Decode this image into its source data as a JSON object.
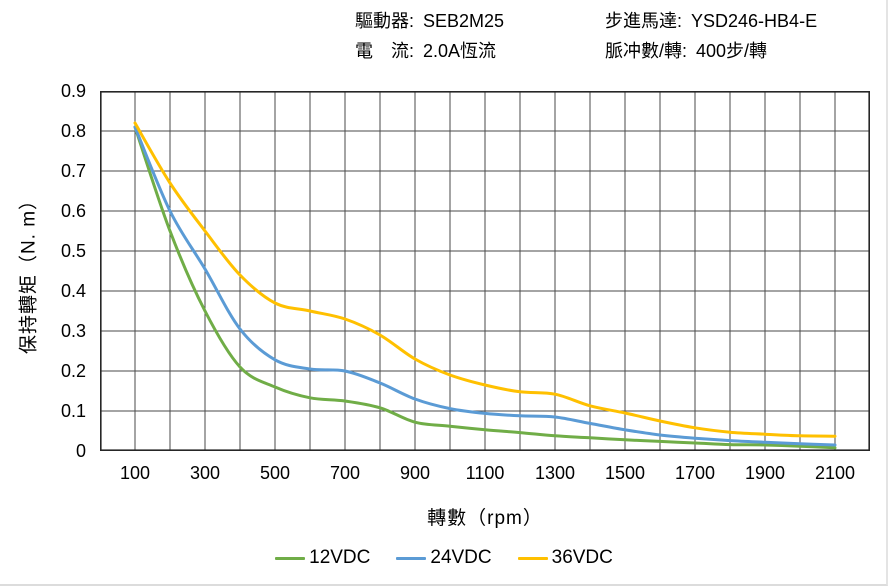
{
  "header": {
    "driver": {
      "label": "驅動器:",
      "value": "SEB2M25"
    },
    "current": {
      "label": "電　流:",
      "value": "2.0A恆流"
    },
    "motor": {
      "label": "步進馬達:",
      "value": "YSD246-HB4-E"
    },
    "pulses": {
      "label": "脈冲數/轉:",
      "value": "400步/轉"
    }
  },
  "chart_data": {
    "type": "line",
    "title": "",
    "xlabel": "轉數（rpm）",
    "ylabel": "保持轉矩（N. m）",
    "xlim": [
      0,
      2200
    ],
    "ylim": [
      0,
      0.9
    ],
    "grid": true,
    "grid_x_step": 100,
    "grid_y_step": 0.1,
    "x_ticks": [
      100,
      300,
      500,
      700,
      900,
      1100,
      1300,
      1500,
      1700,
      1900,
      2100
    ],
    "y_ticks": [
      "0.9",
      "0.8",
      "0.7",
      "0.6",
      "0.5",
      "0.4",
      "0.3",
      "0.2",
      "0.1",
      "0"
    ],
    "legend_position": "bottom",
    "x": [
      100,
      200,
      300,
      400,
      500,
      600,
      700,
      800,
      900,
      1000,
      1100,
      1200,
      1300,
      1400,
      1500,
      1600,
      1700,
      1800,
      1900,
      2000,
      2100
    ],
    "series": [
      {
        "name": "12VDC",
        "color": "#70AD47",
        "values": [
          0.81,
          0.55,
          0.35,
          0.21,
          0.16,
          0.133,
          0.125,
          0.108,
          0.072,
          0.062,
          0.053,
          0.046,
          0.038,
          0.033,
          0.028,
          0.024,
          0.02,
          0.016,
          0.015,
          0.012,
          0.008
        ]
      },
      {
        "name": "24VDC",
        "color": "#5B9BD5",
        "values": [
          0.81,
          0.6,
          0.455,
          0.305,
          0.228,
          0.205,
          0.2,
          0.17,
          0.13,
          0.106,
          0.094,
          0.088,
          0.085,
          0.069,
          0.053,
          0.04,
          0.032,
          0.026,
          0.022,
          0.018,
          0.015
        ]
      },
      {
        "name": "36VDC",
        "color": "#FFC000",
        "values": [
          0.82,
          0.67,
          0.55,
          0.44,
          0.37,
          0.35,
          0.33,
          0.29,
          0.23,
          0.19,
          0.165,
          0.148,
          0.142,
          0.113,
          0.095,
          0.075,
          0.058,
          0.047,
          0.042,
          0.038,
          0.037
        ]
      }
    ]
  }
}
